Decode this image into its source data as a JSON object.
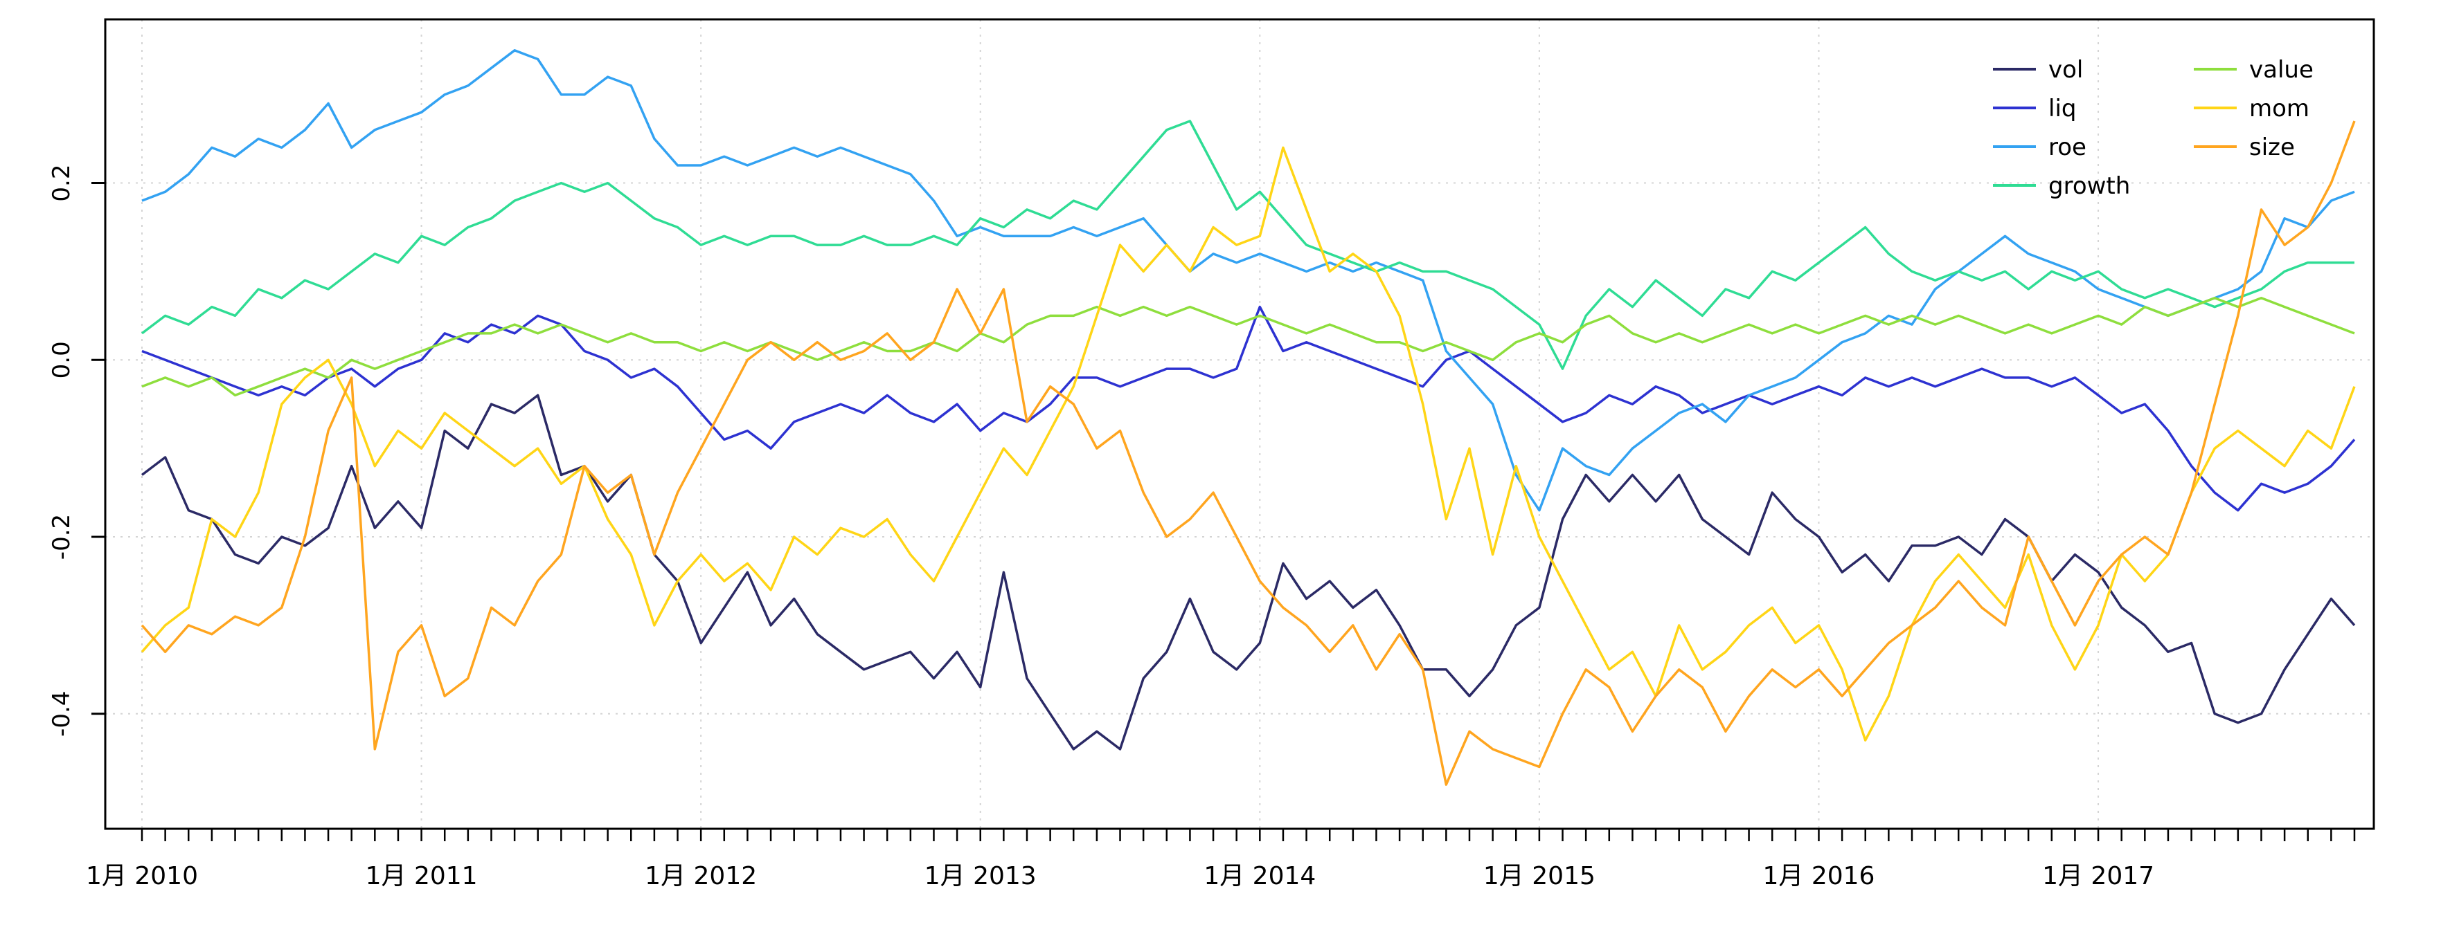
{
  "chart_data": {
    "type": "line",
    "title": "",
    "xlabel": "",
    "ylabel": "",
    "grid": "dotted",
    "grid_color": "#d4d4d4",
    "box_color": "#000000",
    "legend_position": "top-right",
    "legend_columns": [
      [
        "vol",
        "liq",
        "roe",
        "growth"
      ],
      [
        "value",
        "mom",
        "size"
      ]
    ],
    "x_axis": {
      "start": "2010-01",
      "end": "2017-12",
      "interval": "month",
      "n_points": 96,
      "year_tick_labels": [
        "1月 2010",
        "1月 2011",
        "1月 2012",
        "1月 2013",
        "1月 2014",
        "1月 2015",
        "1月 2016",
        "1月 2017"
      ],
      "year_tick_indices": [
        0,
        12,
        24,
        36,
        48,
        60,
        72,
        84
      ]
    },
    "ylim": [
      -0.53,
      0.385
    ],
    "yticks": [
      -0.4,
      -0.2,
      0.0,
      0.2
    ],
    "ytick_labels": [
      "-0.4",
      "-0.2",
      "0.0",
      "0.2"
    ],
    "series": [
      {
        "name": "vol",
        "color": "#2b2a66",
        "values": [
          -0.13,
          -0.11,
          -0.17,
          -0.18,
          -0.22,
          -0.23,
          -0.2,
          -0.21,
          -0.19,
          -0.12,
          -0.19,
          -0.16,
          -0.19,
          -0.08,
          -0.1,
          -0.05,
          -0.06,
          -0.04,
          -0.13,
          -0.12,
          -0.16,
          -0.13,
          -0.22,
          -0.25,
          -0.32,
          -0.28,
          -0.24,
          -0.3,
          -0.27,
          -0.31,
          -0.33,
          -0.35,
          -0.34,
          -0.33,
          -0.36,
          -0.33,
          -0.37,
          -0.24,
          -0.36,
          -0.4,
          -0.44,
          -0.42,
          -0.44,
          -0.36,
          -0.33,
          -0.27,
          -0.33,
          -0.35,
          -0.32,
          -0.23,
          -0.27,
          -0.25,
          -0.28,
          -0.26,
          -0.3,
          -0.35,
          -0.35,
          -0.38,
          -0.35,
          -0.3,
          -0.28,
          -0.18,
          -0.13,
          -0.16,
          -0.13,
          -0.16,
          -0.13,
          -0.18,
          -0.2,
          -0.22,
          -0.15,
          -0.18,
          -0.2,
          -0.24,
          -0.22,
          -0.25,
          -0.21,
          -0.21,
          -0.2,
          -0.22,
          -0.18,
          -0.2,
          -0.25,
          -0.22,
          -0.24,
          -0.28,
          -0.3,
          -0.33,
          -0.32,
          -0.4,
          -0.41,
          -0.4,
          -0.35,
          -0.31,
          -0.27,
          -0.3
        ]
      },
      {
        "name": "liq",
        "color": "#2d32d1",
        "values": [
          0.01,
          0.0,
          -0.01,
          -0.02,
          -0.03,
          -0.04,
          -0.03,
          -0.04,
          -0.02,
          -0.01,
          -0.03,
          -0.01,
          0.0,
          0.03,
          0.02,
          0.04,
          0.03,
          0.05,
          0.04,
          0.01,
          0.0,
          -0.02,
          -0.01,
          -0.03,
          -0.06,
          -0.09,
          -0.08,
          -0.1,
          -0.07,
          -0.06,
          -0.05,
          -0.06,
          -0.04,
          -0.06,
          -0.07,
          -0.05,
          -0.08,
          -0.06,
          -0.07,
          -0.05,
          -0.02,
          -0.02,
          -0.03,
          -0.02,
          -0.01,
          -0.01,
          -0.02,
          -0.01,
          0.06,
          0.01,
          0.02,
          0.01,
          0.0,
          -0.01,
          -0.02,
          -0.03,
          0.0,
          0.01,
          -0.01,
          -0.03,
          -0.05,
          -0.07,
          -0.06,
          -0.04,
          -0.05,
          -0.03,
          -0.04,
          -0.06,
          -0.05,
          -0.04,
          -0.05,
          -0.04,
          -0.03,
          -0.04,
          -0.02,
          -0.03,
          -0.02,
          -0.03,
          -0.02,
          -0.01,
          -0.02,
          -0.02,
          -0.03,
          -0.02,
          -0.04,
          -0.06,
          -0.05,
          -0.08,
          -0.12,
          -0.15,
          -0.17,
          -0.14,
          -0.15,
          -0.14,
          -0.12,
          -0.09
        ]
      },
      {
        "name": "roe",
        "color": "#33a2f2",
        "values": [
          0.18,
          0.19,
          0.21,
          0.24,
          0.23,
          0.25,
          0.24,
          0.26,
          0.29,
          0.24,
          0.26,
          0.27,
          0.28,
          0.3,
          0.31,
          0.33,
          0.35,
          0.34,
          0.3,
          0.3,
          0.32,
          0.31,
          0.25,
          0.22,
          0.22,
          0.23,
          0.22,
          0.23,
          0.24,
          0.23,
          0.24,
          0.23,
          0.22,
          0.21,
          0.18,
          0.14,
          0.15,
          0.14,
          0.14,
          0.14,
          0.15,
          0.14,
          0.15,
          0.16,
          0.13,
          0.1,
          0.12,
          0.11,
          0.12,
          0.11,
          0.1,
          0.11,
          0.1,
          0.11,
          0.1,
          0.09,
          0.01,
          -0.02,
          -0.05,
          -0.13,
          -0.17,
          -0.1,
          -0.12,
          -0.13,
          -0.1,
          -0.08,
          -0.06,
          -0.05,
          -0.07,
          -0.04,
          -0.03,
          -0.02,
          0.0,
          0.02,
          0.03,
          0.05,
          0.04,
          0.08,
          0.1,
          0.12,
          0.14,
          0.12,
          0.11,
          0.1,
          0.08,
          0.07,
          0.06,
          0.05,
          0.06,
          0.07,
          0.08,
          0.1,
          0.16,
          0.15,
          0.18,
          0.19
        ]
      },
      {
        "name": "growth",
        "color": "#2fdc94",
        "values": [
          0.03,
          0.05,
          0.04,
          0.06,
          0.05,
          0.08,
          0.07,
          0.09,
          0.08,
          0.1,
          0.12,
          0.11,
          0.14,
          0.13,
          0.15,
          0.16,
          0.18,
          0.19,
          0.2,
          0.19,
          0.2,
          0.18,
          0.16,
          0.15,
          0.13,
          0.14,
          0.13,
          0.14,
          0.14,
          0.13,
          0.13,
          0.14,
          0.13,
          0.13,
          0.14,
          0.13,
          0.16,
          0.15,
          0.17,
          0.16,
          0.18,
          0.17,
          0.2,
          0.23,
          0.26,
          0.27,
          0.22,
          0.17,
          0.19,
          0.16,
          0.13,
          0.12,
          0.11,
          0.1,
          0.11,
          0.1,
          0.1,
          0.09,
          0.08,
          0.06,
          0.04,
          -0.01,
          0.05,
          0.08,
          0.06,
          0.09,
          0.07,
          0.05,
          0.08,
          0.07,
          0.1,
          0.09,
          0.11,
          0.13,
          0.15,
          0.12,
          0.1,
          0.09,
          0.1,
          0.09,
          0.1,
          0.08,
          0.1,
          0.09,
          0.1,
          0.08,
          0.07,
          0.08,
          0.07,
          0.06,
          0.07,
          0.08,
          0.1,
          0.11,
          0.11,
          0.11
        ]
      },
      {
        "name": "value",
        "color": "#8ede3d",
        "values": [
          -0.03,
          -0.02,
          -0.03,
          -0.02,
          -0.04,
          -0.03,
          -0.02,
          -0.01,
          -0.02,
          0.0,
          -0.01,
          0.0,
          0.01,
          0.02,
          0.03,
          0.03,
          0.04,
          0.03,
          0.04,
          0.03,
          0.02,
          0.03,
          0.02,
          0.02,
          0.01,
          0.02,
          0.01,
          0.02,
          0.01,
          0.0,
          0.01,
          0.02,
          0.01,
          0.01,
          0.02,
          0.01,
          0.03,
          0.02,
          0.04,
          0.05,
          0.05,
          0.06,
          0.05,
          0.06,
          0.05,
          0.06,
          0.05,
          0.04,
          0.05,
          0.04,
          0.03,
          0.04,
          0.03,
          0.02,
          0.02,
          0.01,
          0.02,
          0.01,
          0.0,
          0.02,
          0.03,
          0.02,
          0.04,
          0.05,
          0.03,
          0.02,
          0.03,
          0.02,
          0.03,
          0.04,
          0.03,
          0.04,
          0.03,
          0.04,
          0.05,
          0.04,
          0.05,
          0.04,
          0.05,
          0.04,
          0.03,
          0.04,
          0.03,
          0.04,
          0.05,
          0.04,
          0.06,
          0.05,
          0.06,
          0.07,
          0.06,
          0.07,
          0.06,
          0.05,
          0.04,
          0.03
        ]
      },
      {
        "name": "mom",
        "color": "#ffd516",
        "values": [
          -0.33,
          -0.3,
          -0.28,
          -0.18,
          -0.2,
          -0.15,
          -0.05,
          -0.02,
          0.0,
          -0.05,
          -0.12,
          -0.08,
          -0.1,
          -0.06,
          -0.08,
          -0.1,
          -0.12,
          -0.1,
          -0.14,
          -0.12,
          -0.18,
          -0.22,
          -0.3,
          -0.25,
          -0.22,
          -0.25,
          -0.23,
          -0.26,
          -0.2,
          -0.22,
          -0.19,
          -0.2,
          -0.18,
          -0.22,
          -0.25,
          -0.2,
          -0.15,
          -0.1,
          -0.13,
          -0.08,
          -0.03,
          0.05,
          0.13,
          0.1,
          0.13,
          0.1,
          0.15,
          0.13,
          0.14,
          0.24,
          0.17,
          0.1,
          0.12,
          0.1,
          0.05,
          -0.05,
          -0.18,
          -0.1,
          -0.22,
          -0.12,
          -0.2,
          -0.25,
          -0.3,
          -0.35,
          -0.33,
          -0.38,
          -0.3,
          -0.35,
          -0.33,
          -0.3,
          -0.28,
          -0.32,
          -0.3,
          -0.35,
          -0.43,
          -0.38,
          -0.3,
          -0.25,
          -0.22,
          -0.25,
          -0.28,
          -0.22,
          -0.3,
          -0.35,
          -0.3,
          -0.22,
          -0.25,
          -0.22,
          -0.15,
          -0.1,
          -0.08,
          -0.1,
          -0.12,
          -0.08,
          -0.1,
          -0.03
        ]
      },
      {
        "name": "size",
        "color": "#ffa51f",
        "values": [
          -0.3,
          -0.33,
          -0.3,
          -0.31,
          -0.29,
          -0.3,
          -0.28,
          -0.2,
          -0.08,
          -0.02,
          -0.44,
          -0.33,
          -0.3,
          -0.38,
          -0.36,
          -0.28,
          -0.3,
          -0.25,
          -0.22,
          -0.12,
          -0.15,
          -0.13,
          -0.22,
          -0.15,
          -0.1,
          -0.05,
          0.0,
          0.02,
          0.0,
          0.02,
          0.0,
          0.01,
          0.03,
          0.0,
          0.02,
          0.08,
          0.03,
          0.08,
          -0.07,
          -0.03,
          -0.05,
          -0.1,
          -0.08,
          -0.15,
          -0.2,
          -0.18,
          -0.15,
          -0.2,
          -0.25,
          -0.28,
          -0.3,
          -0.33,
          -0.3,
          -0.35,
          -0.31,
          -0.35,
          -0.48,
          -0.42,
          -0.44,
          -0.45,
          -0.46,
          -0.4,
          -0.35,
          -0.37,
          -0.42,
          -0.38,
          -0.35,
          -0.37,
          -0.42,
          -0.38,
          -0.35,
          -0.37,
          -0.35,
          -0.38,
          -0.35,
          -0.32,
          -0.3,
          -0.28,
          -0.25,
          -0.28,
          -0.3,
          -0.2,
          -0.25,
          -0.3,
          -0.25,
          -0.22,
          -0.2,
          -0.22,
          -0.15,
          -0.05,
          0.05,
          0.17,
          0.13,
          0.15,
          0.2,
          0.27
        ]
      }
    ]
  }
}
